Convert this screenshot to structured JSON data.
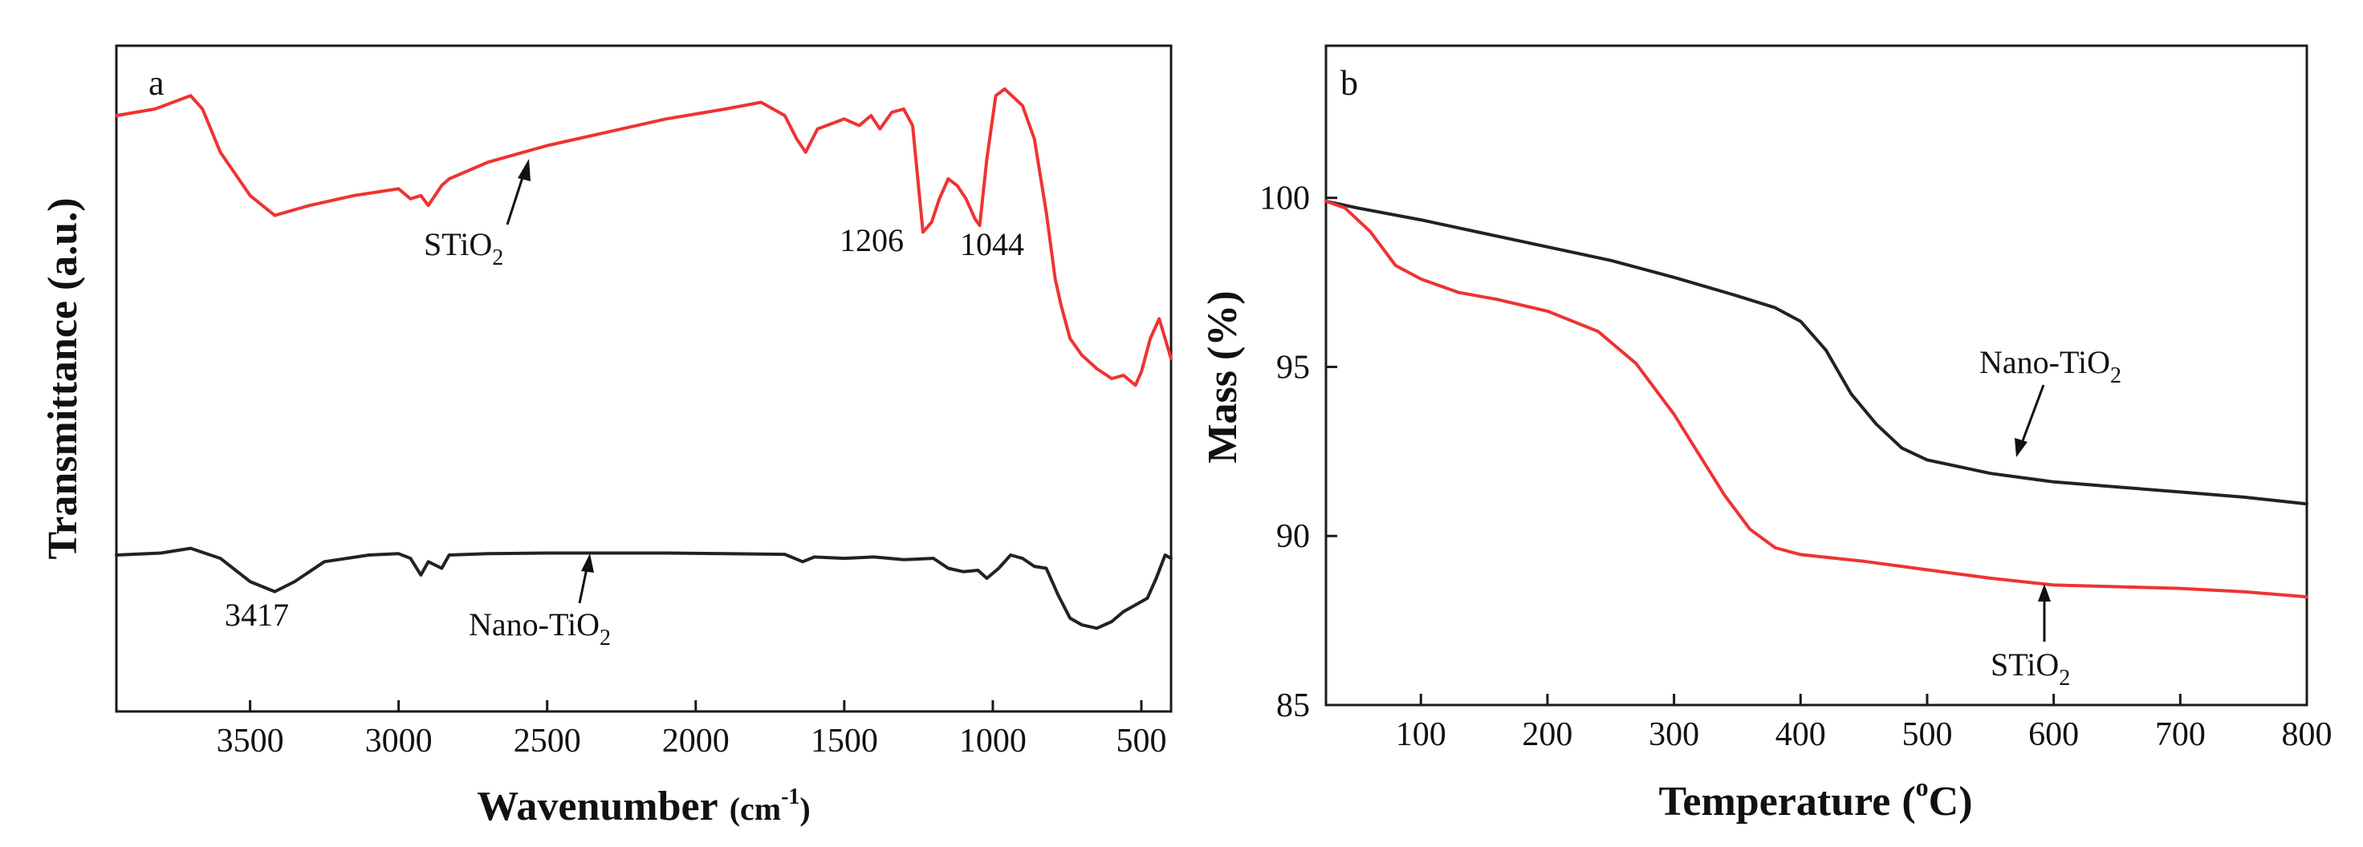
{
  "chart_data": [
    {
      "type": "line",
      "panel": "a",
      "title": "",
      "xlabel": "Wavenumber",
      "xlabel_unit_base": "(cm",
      "xlabel_unit_sup": "-1",
      "xlabel_unit_close": ")",
      "ylabel": "Transmittance (a.u.)",
      "xlim": [
        3950,
        400
      ],
      "ylim": [
        0,
        1
      ],
      "x_ticks": [
        3500,
        3000,
        2500,
        2000,
        1500,
        1000,
        500
      ],
      "x_tick_labels": [
        "3500",
        "3000",
        "2500",
        "2000",
        "1500",
        "1000",
        "500"
      ],
      "series": [
        {
          "name": "STiO2",
          "color": "#ee3333",
          "x": [
            3950,
            3820,
            3700,
            3660,
            3600,
            3500,
            3417,
            3300,
            3150,
            3000,
            2960,
            2925,
            2900,
            2855,
            2830,
            2700,
            2500,
            2300,
            2100,
            1900,
            1780,
            1700,
            1660,
            1630,
            1590,
            1500,
            1450,
            1410,
            1380,
            1340,
            1300,
            1270,
            1235,
            1206,
            1180,
            1150,
            1120,
            1090,
            1060,
            1044,
            1020,
            990,
            960,
            900,
            860,
            820,
            790,
            770,
            740,
            700,
            650,
            600,
            560,
            520,
            500,
            470,
            440,
            400
          ],
          "y": [
            0.895,
            0.905,
            0.925,
            0.905,
            0.84,
            0.775,
            0.745,
            0.76,
            0.775,
            0.785,
            0.77,
            0.775,
            0.76,
            0.79,
            0.8,
            0.825,
            0.85,
            0.87,
            0.89,
            0.905,
            0.915,
            0.895,
            0.86,
            0.84,
            0.875,
            0.89,
            0.88,
            0.895,
            0.875,
            0.9,
            0.905,
            0.88,
            0.72,
            0.735,
            0.77,
            0.8,
            0.79,
            0.77,
            0.74,
            0.73,
            0.83,
            0.925,
            0.935,
            0.91,
            0.86,
            0.75,
            0.65,
            0.61,
            0.56,
            0.535,
            0.515,
            0.5,
            0.505,
            0.49,
            0.51,
            0.56,
            0.59,
            0.53
          ]
        },
        {
          "name": "Nano-TiO2",
          "color": "#222222",
          "x": [
            3950,
            3800,
            3700,
            3600,
            3500,
            3417,
            3350,
            3250,
            3100,
            3000,
            2960,
            2925,
            2900,
            2855,
            2830,
            2700,
            2500,
            2300,
            2100,
            1900,
            1700,
            1640,
            1600,
            1500,
            1400,
            1300,
            1200,
            1150,
            1100,
            1050,
            1020,
            980,
            940,
            900,
            860,
            820,
            780,
            740,
            700,
            650,
            600,
            560,
            520,
            480,
            450,
            420,
            400
          ],
          "y": [
            0.235,
            0.238,
            0.245,
            0.23,
            0.195,
            0.18,
            0.195,
            0.225,
            0.235,
            0.237,
            0.23,
            0.205,
            0.225,
            0.215,
            0.235,
            0.237,
            0.238,
            0.238,
            0.238,
            0.237,
            0.236,
            0.225,
            0.232,
            0.23,
            0.232,
            0.228,
            0.23,
            0.215,
            0.21,
            0.212,
            0.2,
            0.215,
            0.235,
            0.23,
            0.218,
            0.215,
            0.175,
            0.14,
            0.13,
            0.125,
            0.135,
            0.15,
            0.16,
            0.17,
            0.2,
            0.235,
            0.23
          ]
        }
      ],
      "annotations": [
        {
          "name": "sti-label",
          "base": "STiO",
          "sub": "2"
        },
        {
          "name": "nano-label",
          "base": "Nano-TiO",
          "sub": "2"
        },
        {
          "name": "peak-3417",
          "text": "3417"
        },
        {
          "name": "peak-1206",
          "text": "1206"
        },
        {
          "name": "peak-1044",
          "text": "1044"
        }
      ]
    },
    {
      "type": "line",
      "panel": "b",
      "title": "",
      "xlabel": "Temperature",
      "xlabel_unit_open": "(",
      "xlabel_unit_sup": "o",
      "xlabel_unit_close": "C)",
      "ylabel": "Mass (%)",
      "xlim": [
        25,
        800
      ],
      "ylim": [
        85,
        104.5
      ],
      "x_ticks": [
        100,
        200,
        300,
        400,
        500,
        600,
        700,
        800
      ],
      "x_tick_labels": [
        "100",
        "200",
        "300",
        "400",
        "500",
        "600",
        "700",
        "800"
      ],
      "y_ticks": [
        85,
        90,
        95,
        100
      ],
      "y_tick_labels": [
        "85",
        "90",
        "95",
        "100"
      ],
      "series": [
        {
          "name": "Nano-TiO2",
          "color": "#222222",
          "x": [
            25,
            50,
            100,
            150,
            200,
            250,
            300,
            350,
            380,
            400,
            420,
            440,
            460,
            480,
            500,
            550,
            600,
            650,
            700,
            750,
            800
          ],
          "y": [
            99.9,
            99.7,
            99.35,
            98.95,
            98.55,
            98.15,
            97.65,
            97.1,
            96.75,
            96.35,
            95.5,
            94.2,
            93.3,
            92.6,
            92.25,
            91.85,
            91.6,
            91.45,
            91.3,
            91.15,
            90.95
          ],
          "label_base": "Nano-TiO",
          "label_sub": "2"
        },
        {
          "name": "STiO2",
          "color": "#ee3333",
          "x": [
            25,
            40,
            60,
            80,
            100,
            130,
            160,
            200,
            240,
            270,
            300,
            320,
            340,
            360,
            380,
            400,
            450,
            500,
            550,
            600,
            650,
            700,
            750,
            800
          ],
          "y": [
            99.9,
            99.7,
            99.0,
            98.0,
            97.6,
            97.2,
            97.0,
            96.65,
            96.05,
            95.1,
            93.6,
            92.4,
            91.2,
            90.2,
            89.65,
            89.45,
            89.25,
            89.0,
            88.75,
            88.55,
            88.5,
            88.45,
            88.35,
            88.2
          ],
          "label_base": "STiO",
          "label_sub": "2"
        }
      ]
    }
  ],
  "panel_labels": {
    "a": "a",
    "b": "b"
  }
}
